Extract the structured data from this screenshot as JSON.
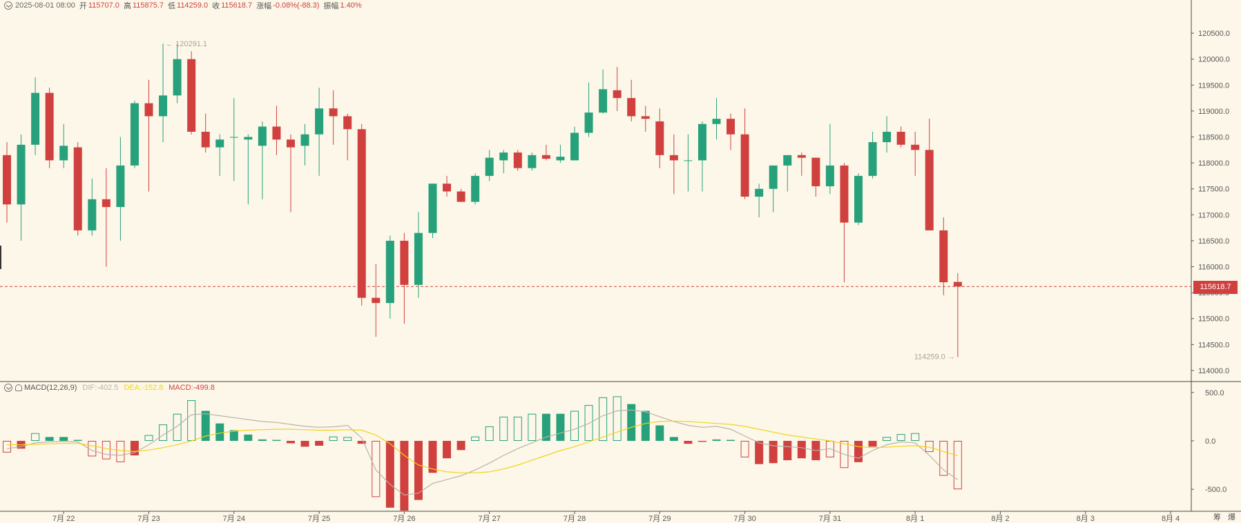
{
  "header": {
    "timestamp": "2025-08-01 08:00",
    "open_label": "开",
    "open": "115707.0",
    "high_label": "高",
    "high": "115875.7",
    "low_label": "低",
    "low": "114259.0",
    "close_label": "收",
    "close": "115618.7",
    "change_label": "涨幅",
    "change": "-0.08%(-88.3)",
    "amplitude_label": "振幅",
    "amplitude": "1.40%"
  },
  "macd_header": {
    "name": "MACD(12,26,9)",
    "dif": "DIF:-402.5",
    "dea": "DEA:-152.8",
    "macd": "MACD:-499.8"
  },
  "current_price_tag": "115618.7",
  "high_marker": "← 120291.1",
  "low_marker": "114259.0 →",
  "scale_controls": {
    "left": "筹",
    "right": "爆"
  },
  "colors": {
    "up": "#26a17b",
    "down": "#d0403f",
    "dif_line": "#b9b3aa",
    "dea_line": "#f0d419",
    "background": "#fcf7e8"
  },
  "chart_data": [
    {
      "type": "candlestick",
      "interval": "4h",
      "y_ticks": [
        114000.0,
        114500.0,
        115000.0,
        115500.0,
        116000.0,
        116500.0,
        117000.0,
        117500.0,
        118000.0,
        118500.0,
        119000.0,
        119500.0,
        120000.0,
        120500.0
      ],
      "ylim": [
        113800,
        120900
      ],
      "x_tick_labels": [
        "7月 22",
        "7月 23",
        "7月 24",
        "7月 25",
        "7月 26",
        "7月 27",
        "7月 28",
        "7月 29",
        "7月 30",
        "7月 31",
        "8月 1",
        "8月 2",
        "8月 3",
        "8月 4"
      ],
      "current_price": 115618.7,
      "candles": [
        {
          "o": 118150,
          "h": 118400,
          "l": 116850,
          "c": 117200
        },
        {
          "o": 117200,
          "h": 118550,
          "l": 116500,
          "c": 118350
        },
        {
          "o": 118350,
          "h": 119650,
          "l": 118150,
          "c": 119350
        },
        {
          "o": 119350,
          "h": 119450,
          "l": 117900,
          "c": 118050
        },
        {
          "o": 118050,
          "h": 118750,
          "l": 117900,
          "c": 118330
        },
        {
          "o": 118300,
          "h": 118400,
          "l": 116600,
          "c": 116700
        },
        {
          "o": 116700,
          "h": 117700,
          "l": 116600,
          "c": 117300
        },
        {
          "o": 117300,
          "h": 117900,
          "l": 116000,
          "c": 117150
        },
        {
          "o": 117150,
          "h": 118500,
          "l": 116500,
          "c": 117950
        },
        {
          "o": 117950,
          "h": 119200,
          "l": 117900,
          "c": 119150
        },
        {
          "o": 119150,
          "h": 119600,
          "l": 117450,
          "c": 118900
        },
        {
          "o": 118900,
          "h": 120300,
          "l": 118400,
          "c": 119300
        },
        {
          "o": 119300,
          "h": 120291.1,
          "l": 119150,
          "c": 120000
        },
        {
          "o": 120000,
          "h": 120150,
          "l": 118550,
          "c": 118600
        },
        {
          "o": 118600,
          "h": 118950,
          "l": 118200,
          "c": 118300
        },
        {
          "o": 118300,
          "h": 118550,
          "l": 117750,
          "c": 118450
        },
        {
          "o": 118500,
          "h": 119250,
          "l": 117650,
          "c": 118500
        },
        {
          "o": 118450,
          "h": 118550,
          "l": 117200,
          "c": 118500
        },
        {
          "o": 118330,
          "h": 118800,
          "l": 117300,
          "c": 118700
        },
        {
          "o": 118700,
          "h": 119100,
          "l": 118150,
          "c": 118450
        },
        {
          "o": 118450,
          "h": 118550,
          "l": 117050,
          "c": 118300
        },
        {
          "o": 118330,
          "h": 118750,
          "l": 117950,
          "c": 118550
        },
        {
          "o": 118550,
          "h": 119450,
          "l": 117750,
          "c": 119050
        },
        {
          "o": 119050,
          "h": 119400,
          "l": 118350,
          "c": 118900
        },
        {
          "o": 118900,
          "h": 118950,
          "l": 118050,
          "c": 118650
        },
        {
          "o": 118650,
          "h": 118750,
          "l": 115250,
          "c": 115400
        },
        {
          "o": 115400,
          "h": 116050,
          "l": 114650,
          "c": 115300
        },
        {
          "o": 115300,
          "h": 116600,
          "l": 115000,
          "c": 116500
        },
        {
          "o": 116500,
          "h": 116650,
          "l": 114900,
          "c": 115650
        },
        {
          "o": 115650,
          "h": 117050,
          "l": 115400,
          "c": 116650
        },
        {
          "o": 116650,
          "h": 117600,
          "l": 116550,
          "c": 117600
        },
        {
          "o": 117600,
          "h": 117750,
          "l": 117350,
          "c": 117450
        },
        {
          "o": 117450,
          "h": 117500,
          "l": 117250,
          "c": 117250
        },
        {
          "o": 117250,
          "h": 117800,
          "l": 117200,
          "c": 117750
        },
        {
          "o": 117750,
          "h": 118250,
          "l": 117650,
          "c": 118100
        },
        {
          "o": 118050,
          "h": 118250,
          "l": 117800,
          "c": 118200
        },
        {
          "o": 118200,
          "h": 118250,
          "l": 117850,
          "c": 117900
        },
        {
          "o": 117900,
          "h": 118200,
          "l": 117850,
          "c": 118150
        },
        {
          "o": 118150,
          "h": 118350,
          "l": 118050,
          "c": 118080
        },
        {
          "o": 118050,
          "h": 118350,
          "l": 118000,
          "c": 118120
        },
        {
          "o": 118050,
          "h": 118700,
          "l": 118050,
          "c": 118580
        },
        {
          "o": 118580,
          "h": 119550,
          "l": 118500,
          "c": 118970
        },
        {
          "o": 118970,
          "h": 119800,
          "l": 118950,
          "c": 119420
        },
        {
          "o": 119400,
          "h": 119850,
          "l": 119000,
          "c": 119250
        },
        {
          "o": 119250,
          "h": 119600,
          "l": 118800,
          "c": 118900
        },
        {
          "o": 118900,
          "h": 119100,
          "l": 118600,
          "c": 118850
        },
        {
          "o": 118800,
          "h": 119050,
          "l": 117900,
          "c": 118150
        },
        {
          "o": 118150,
          "h": 118550,
          "l": 117400,
          "c": 118050
        },
        {
          "o": 118050,
          "h": 118550,
          "l": 117450,
          "c": 118050
        },
        {
          "o": 118050,
          "h": 118800,
          "l": 117450,
          "c": 118750
        },
        {
          "o": 118750,
          "h": 119250,
          "l": 118450,
          "c": 118850
        },
        {
          "o": 118850,
          "h": 118950,
          "l": 118250,
          "c": 118550
        },
        {
          "o": 118550,
          "h": 119050,
          "l": 117300,
          "c": 117350
        },
        {
          "o": 117350,
          "h": 117600,
          "l": 116950,
          "c": 117500
        },
        {
          "o": 117500,
          "h": 117950,
          "l": 117050,
          "c": 117950
        },
        {
          "o": 117950,
          "h": 118150,
          "l": 117450,
          "c": 118150
        },
        {
          "o": 118150,
          "h": 118200,
          "l": 117750,
          "c": 118100
        },
        {
          "o": 118100,
          "h": 118100,
          "l": 117350,
          "c": 117550
        },
        {
          "o": 117550,
          "h": 118750,
          "l": 117400,
          "c": 117950
        },
        {
          "o": 117950,
          "h": 118000,
          "l": 115700,
          "c": 116850
        },
        {
          "o": 116850,
          "h": 117800,
          "l": 116800,
          "c": 117750
        },
        {
          "o": 117750,
          "h": 118600,
          "l": 117700,
          "c": 118400
        },
        {
          "o": 118400,
          "h": 118900,
          "l": 118200,
          "c": 118600
        },
        {
          "o": 118600,
          "h": 118700,
          "l": 118300,
          "c": 118350
        },
        {
          "o": 118350,
          "h": 118600,
          "l": 117750,
          "c": 118250
        },
        {
          "o": 118250,
          "h": 118850,
          "l": 116750,
          "c": 116700
        },
        {
          "o": 116700,
          "h": 116950,
          "l": 115450,
          "c": 115700
        },
        {
          "o": 115707.0,
          "h": 115875.7,
          "l": 114259.0,
          "c": 115618.7
        }
      ]
    },
    {
      "type": "macd",
      "params": "12,26,9",
      "y_ticks": [
        500.0,
        0.0,
        -500.0
      ],
      "ylim": [
        -720,
        520
      ],
      "histogram": [
        -120,
        -80,
        80,
        40,
        40,
        10,
        -160,
        -190,
        -220,
        -150,
        60,
        170,
        280,
        420,
        310,
        180,
        110,
        65,
        15,
        10,
        -25,
        -60,
        -50,
        45,
        40,
        -30,
        -580,
        -690,
        -720,
        -610,
        -330,
        -180,
        -95,
        45,
        150,
        250,
        250,
        280,
        280,
        280,
        310,
        370,
        450,
        460,
        380,
        310,
        160,
        40,
        -30,
        -10,
        15,
        10,
        -170,
        -240,
        -230,
        -200,
        -180,
        -200,
        -170,
        -280,
        -220,
        -60,
        40,
        70,
        80,
        -115,
        -360,
        -500
      ],
      "hist_filled": [
        false,
        true,
        false,
        true,
        true,
        true,
        false,
        false,
        false,
        true,
        false,
        false,
        false,
        false,
        true,
        true,
        true,
        true,
        true,
        true,
        true,
        true,
        true,
        false,
        false,
        true,
        false,
        true,
        true,
        true,
        true,
        true,
        true,
        false,
        false,
        false,
        false,
        false,
        true,
        true,
        false,
        false,
        false,
        false,
        true,
        true,
        true,
        true,
        true,
        true,
        false,
        false,
        false,
        true,
        true,
        true,
        true,
        true,
        false,
        false,
        true,
        true,
        false,
        false,
        false,
        false,
        false,
        false
      ],
      "dif": [
        -80,
        -60,
        -20,
        -10,
        -5,
        -10,
        -100,
        -140,
        -150,
        -120,
        -40,
        60,
        150,
        270,
        280,
        260,
        240,
        220,
        200,
        190,
        170,
        150,
        140,
        145,
        160,
        30,
        -300,
        -450,
        -560,
        -540,
        -440,
        -400,
        -360,
        -300,
        -230,
        -150,
        -80,
        -20,
        40,
        80,
        120,
        180,
        260,
        310,
        320,
        300,
        250,
        200,
        160,
        140,
        150,
        120,
        50,
        -20,
        -50,
        -60,
        -70,
        -100,
        -80,
        -140,
        -180,
        -100,
        -40,
        -10,
        -20,
        -150,
        -300,
        -402.5
      ],
      "dea": [
        -40,
        -40,
        -35,
        -30,
        -25,
        -25,
        -50,
        -80,
        -100,
        -110,
        -95,
        -70,
        -40,
        0,
        50,
        80,
        100,
        110,
        115,
        120,
        120,
        115,
        110,
        110,
        115,
        110,
        60,
        -30,
        -150,
        -250,
        -290,
        -320,
        -330,
        -330,
        -320,
        -290,
        -250,
        -200,
        -150,
        -100,
        -60,
        -10,
        40,
        90,
        140,
        180,
        200,
        205,
        200,
        190,
        180,
        170,
        150,
        120,
        90,
        60,
        40,
        20,
        0,
        -30,
        -60,
        -70,
        -65,
        -55,
        -50,
        -65,
        -110,
        -152.8
      ]
    }
  ]
}
